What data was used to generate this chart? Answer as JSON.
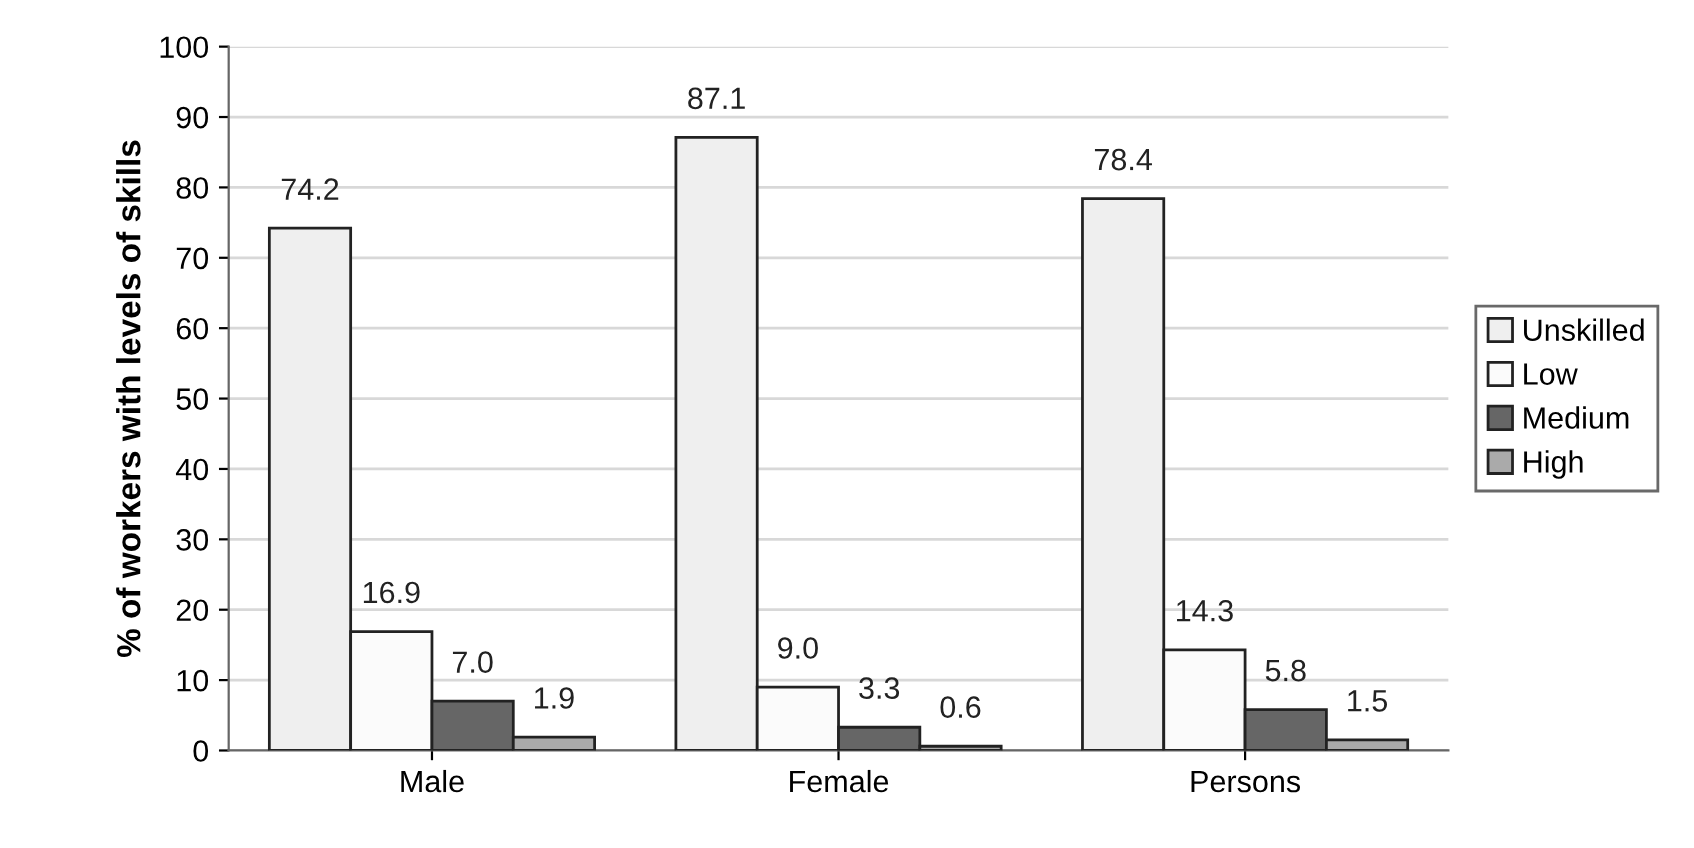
{
  "chart_data": {
    "type": "bar",
    "ylabel": "% of workers with levels of skills",
    "categories": [
      "Male",
      "Female",
      "Persons"
    ],
    "series": [
      {
        "name": "Unskilled",
        "color": "#efefef",
        "values": [
          74.2,
          87.1,
          78.4
        ],
        "value_labels": [
          "74.2",
          "87.1",
          "78.4"
        ]
      },
      {
        "name": "Low",
        "color": "#fbfbfb",
        "values": [
          16.9,
          9,
          14.3
        ],
        "value_labels": [
          "16.9",
          "9.0",
          "14.3"
        ]
      },
      {
        "name": "Medium",
        "color": "#666666",
        "values": [
          7,
          3.3,
          5.8
        ],
        "value_labels": [
          "7.0",
          "3.3",
          "5.8"
        ]
      },
      {
        "name": "High",
        "color": "#aaaaaa",
        "values": [
          1.9,
          0.6,
          1.5
        ],
        "value_labels": [
          "1.9",
          "0.6",
          "1.5"
        ]
      }
    ],
    "ylim": [
      0,
      100
    ],
    "yticks": [
      0,
      10,
      20,
      30,
      40,
      50,
      60,
      70,
      80,
      90,
      100
    ],
    "grid": "y",
    "legend": "right"
  }
}
